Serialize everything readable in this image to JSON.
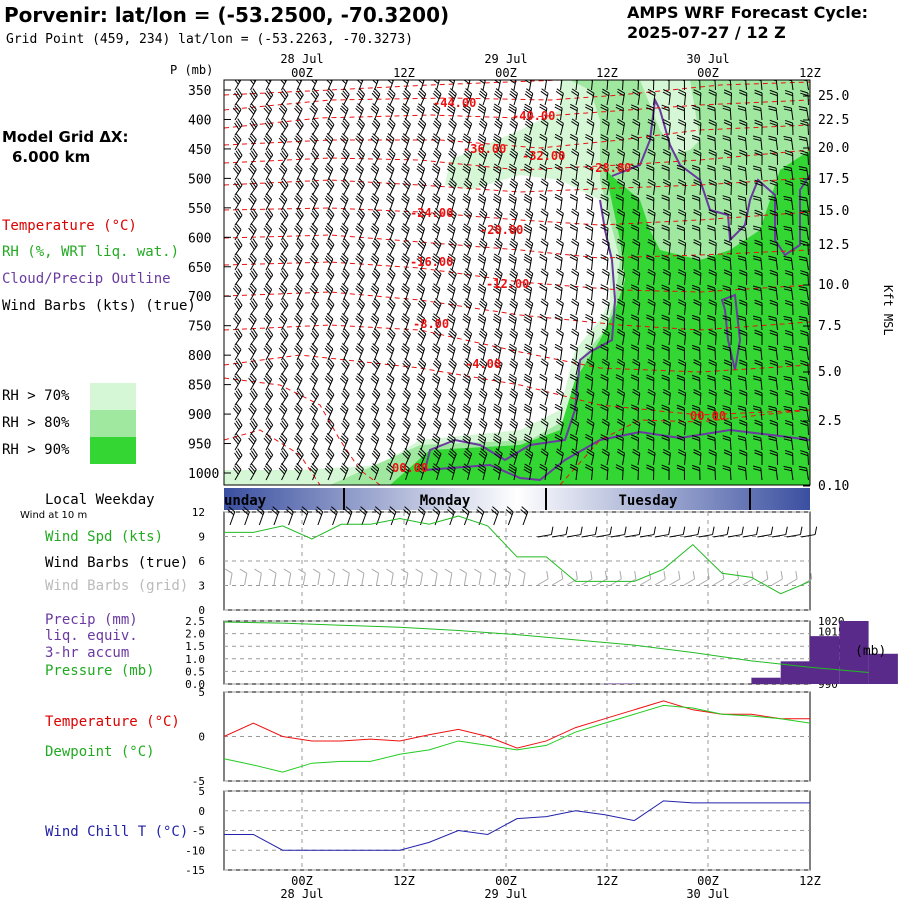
{
  "header": {
    "title": "Porvenir:  lat/lon = (-53.2500, -70.3200)",
    "subtitle": "Grid Point (459, 234) lat/lon = (-53.2263, -70.3273)",
    "cycle_label": "AMPS WRF Forecast Cycle:",
    "cycle_value": "2025-07-27 / 12  Z"
  },
  "left_labels": {
    "grid_dx_1": "Model Grid ΔX:",
    "grid_dx_2": "6.000 km",
    "temperature": "Temperature (°C)",
    "rh": "RH (%, WRT liq. wat.)",
    "cloud": "Cloud/Precip Outline",
    "wind_barbs": "Wind Barbs (kts) (true)",
    "rh70": "RH > 70%",
    "rh80": "RH > 80%",
    "rh90": "RH > 90%",
    "local_weekday": "Local Weekday",
    "wind10m": "Wind at 10 m",
    "wind_spd": "Wind Spd (kts)",
    "wind_barbs_true": "Wind Barbs (true)",
    "wind_barbs_grid": "Wind Barbs (grid)",
    "precip_1": "Precip (mm)",
    "precip_2": "liq. equiv.",
    "precip_3": "3-hr accum",
    "pressure": "Pressure (mb)",
    "temp2": "Temperature (°C)",
    "dewpoint": "Dewpoint (°C)",
    "windchill": "Wind Chill T (°C)"
  },
  "colors": {
    "temperature": "#ff0000",
    "rh70": "#d6f7d6",
    "rh80": "#a0e8a0",
    "rh90": "#33d633",
    "cloud_outline": "#5a3a9a",
    "wind_speed": "#22bb22",
    "precip": "#5a2a8a",
    "pressure": "#22bb22",
    "dewpoint": "#22cc22",
    "windchill": "#2222aa",
    "grid_barbs": "#aaaaaa"
  },
  "time_axis": {
    "top_dates": [
      "28 Jul",
      "29 Jul",
      "30 Jul"
    ],
    "bottom_dates": [
      "28 Jul",
      "29 Jul",
      "30 Jul"
    ],
    "ticks": [
      "00Z",
      "12Z",
      "00Z",
      "12Z",
      "00Z",
      "12Z"
    ]
  },
  "weekday_bar": [
    "unday",
    "Monday",
    "Tuesday"
  ],
  "chart_data": [
    {
      "type": "heatmap",
      "panel": "time-height cross section",
      "y_axis_label": "P (mb)",
      "y_ticks": [
        "350",
        "400",
        "450",
        "500",
        "550",
        "600",
        "650",
        "700",
        "750",
        "800",
        "850",
        "900",
        "950",
        "1000"
      ],
      "right_axis_label": "Kft MSL",
      "right_ticks": [
        "25.0",
        "22.5",
        "20.0",
        "17.5",
        "15.0",
        "12.5",
        "10.0",
        "7.5",
        "5.0",
        "2.5",
        "0.10"
      ],
      "temperature_contour_labels": [
        "-44.00",
        "-40.00",
        "-36.00",
        "-32.00",
        "-28.00",
        "-24.00",
        "-20.00",
        "-16.00",
        "-12.00",
        "-8.00",
        "-4.00",
        "00.00",
        "00.00"
      ]
    },
    {
      "type": "line",
      "panel": "wind speed",
      "ylim": [
        0,
        12
      ],
      "y_ticks": [
        "0",
        "3",
        "6",
        "9",
        "12"
      ],
      "series": [
        {
          "name": "Wind Spd (kts)",
          "x": [
            0,
            3,
            6,
            9,
            12,
            15,
            18,
            21,
            24,
            27,
            30,
            33,
            36,
            39,
            42,
            45,
            48,
            51,
            54,
            57,
            60
          ],
          "values": [
            9.5,
            9.5,
            10.3,
            8.7,
            10.5,
            10.5,
            11.2,
            10.5,
            11.5,
            10.3,
            6.5,
            6.5,
            3.5,
            3.5,
            3.5,
            5.0,
            8.0,
            4.5,
            4.0,
            2.0,
            3.5
          ]
        }
      ]
    },
    {
      "type": "bar",
      "panel": "precipitation and pressure",
      "ylim": [
        0,
        2.5
      ],
      "y_ticks": [
        "0.0",
        "0.5",
        "1.0",
        "1.5",
        "2.0",
        "2.5"
      ],
      "right_ticks": [
        "990",
        "995",
        "1000",
        "1005",
        "1010",
        "1015",
        "1020"
      ],
      "right_unit": "(mb)",
      "series": [
        {
          "name": "Precip (mm)",
          "x": [
            30,
            33,
            36,
            39,
            42,
            45,
            48,
            51,
            54,
            57,
            60,
            63,
            66,
            69
          ],
          "values": [
            0.0,
            0.0,
            0.0,
            0.0,
            0.02,
            0.0,
            0.0,
            0.0,
            0.0,
            0.25,
            0.9,
            1.9,
            2.5,
            1.2
          ]
        },
        {
          "name": "Pressure (mb)",
          "x": [
            0,
            6,
            12,
            18,
            24,
            30,
            36,
            42,
            48,
            54,
            60,
            66
          ],
          "values": [
            1019.5,
            1019,
            1018,
            1017,
            1015.5,
            1013.5,
            1011,
            1008.5,
            1005,
            1001,
            998,
            995.5
          ]
        }
      ]
    },
    {
      "type": "line",
      "panel": "temperature and dewpoint",
      "ylim": [
        -5,
        5
      ],
      "y_ticks": [
        "-5",
        "0",
        "5"
      ],
      "series": [
        {
          "name": "Temperature (°C)",
          "x": [
            0,
            3,
            6,
            9,
            12,
            15,
            18,
            21,
            24,
            27,
            30,
            33,
            36,
            39,
            42,
            45,
            48,
            51,
            54,
            57,
            60
          ],
          "values": [
            0,
            1.5,
            0.0,
            -0.5,
            -0.5,
            -0.3,
            -0.5,
            0.2,
            0.8,
            0.0,
            -1.3,
            -0.5,
            1.0,
            2.0,
            3.0,
            4.0,
            3.0,
            2.5,
            2.5,
            2.0,
            2.0
          ]
        },
        {
          "name": "Dewpoint (°C)",
          "x": [
            0,
            3,
            6,
            9,
            12,
            15,
            18,
            21,
            24,
            27,
            30,
            33,
            36,
            39,
            42,
            45,
            48,
            51,
            54,
            57,
            60
          ],
          "values": [
            -2.5,
            -3.2,
            -4.0,
            -3.0,
            -2.8,
            -2.8,
            -2.0,
            -1.5,
            -0.5,
            -1.0,
            -1.5,
            -1.0,
            0.5,
            1.5,
            2.5,
            3.5,
            3.2,
            2.5,
            2.3,
            2.0,
            1.5
          ]
        }
      ]
    },
    {
      "type": "line",
      "panel": "wind chill",
      "ylim": [
        -15,
        5
      ],
      "y_ticks": [
        "-15",
        "-10",
        "-5",
        "0",
        "5"
      ],
      "series": [
        {
          "name": "Wind Chill T (°C)",
          "x": [
            0,
            3,
            6,
            9,
            12,
            15,
            18,
            21,
            24,
            27,
            30,
            33,
            36,
            39,
            42,
            45,
            48,
            51,
            54,
            57,
            60
          ],
          "values": [
            -6,
            -6,
            -10,
            -10,
            -10,
            -10,
            -10,
            -8,
            -5,
            -6,
            -2,
            -1.5,
            0,
            -1,
            -2.5,
            2.5,
            2,
            2,
            2,
            2,
            2
          ]
        }
      ]
    }
  ]
}
